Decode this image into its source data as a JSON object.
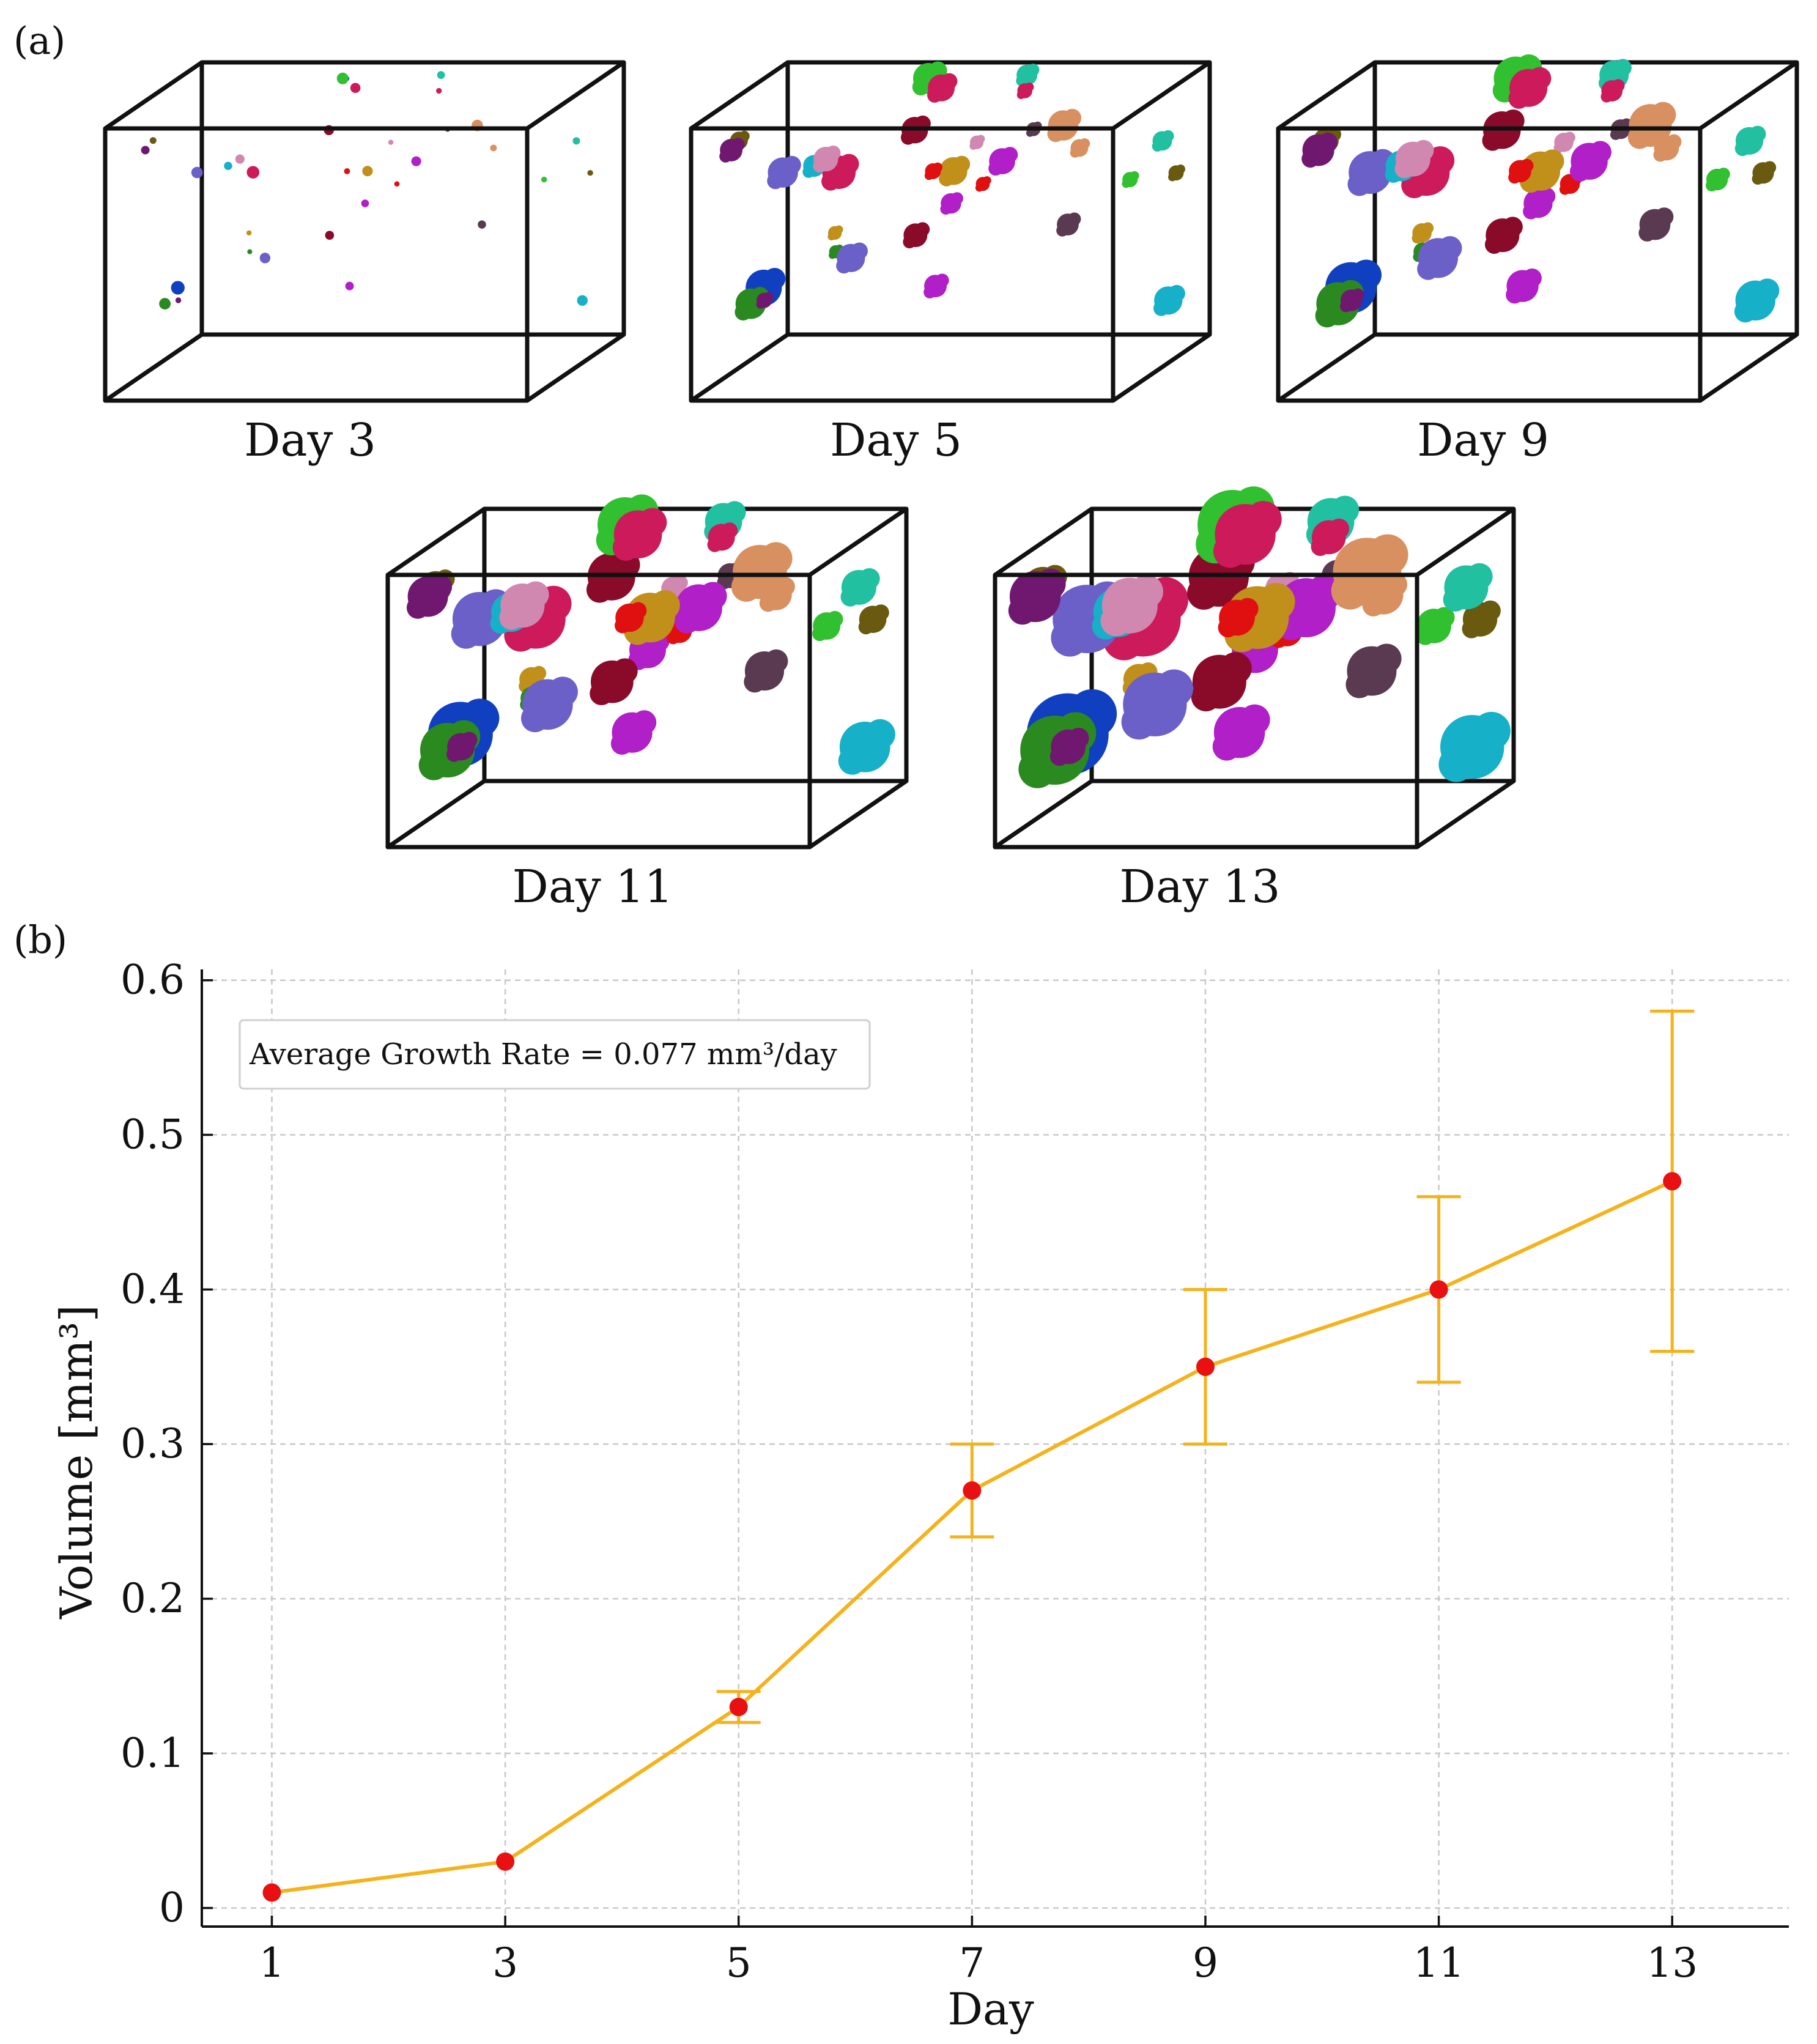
{
  "figure": {
    "panel_a_label": "(a)",
    "panel_b_label": "(b)"
  },
  "panel_a": {
    "days": [
      {
        "label": "Day 3",
        "size": 0.0
      },
      {
        "label": "Day 5",
        "size": 0.33
      },
      {
        "label": "Day 9",
        "size": 0.55
      },
      {
        "label": "Day 11",
        "size": 0.75
      },
      {
        "label": "Day 13",
        "size": 1.0
      }
    ],
    "organoid_colors": [
      "#b01fc8",
      "#cc1a5a",
      "#1040c0",
      "#8a0a2a",
      "#20c0a0",
      "#c0901a",
      "#e01010",
      "#2a8a20",
      "#6a60c8",
      "#16b0c8",
      "#5a3a50",
      "#6a5a10",
      "#d088b0",
      "#d89060",
      "#701870",
      "#30c030"
    ]
  },
  "chart_data": {
    "type": "line",
    "title": "",
    "xlabel": "Day",
    "ylabel": "Volume [mm³]",
    "x": [
      1,
      3,
      5,
      7,
      9,
      11,
      13
    ],
    "values": [
      0.01,
      0.03,
      0.13,
      0.27,
      0.35,
      0.4,
      0.47
    ],
    "error_low": [
      null,
      null,
      0.12,
      0.24,
      0.3,
      0.34,
      0.36
    ],
    "error_high": [
      null,
      null,
      0.14,
      0.3,
      0.4,
      0.46,
      0.58
    ],
    "xlim": [
      0.4,
      14.0
    ],
    "ylim": [
      -0.012,
      0.607
    ],
    "xticks": [
      1,
      3,
      5,
      7,
      9,
      11,
      13
    ],
    "yticks": [
      0,
      0.1,
      0.2,
      0.3,
      0.4,
      0.5,
      0.6
    ],
    "ytick_labels": [
      "0",
      "0.1",
      "0.2",
      "0.3",
      "0.4",
      "0.5",
      "0.6"
    ],
    "grid": true,
    "legend_text": "Average Growth Rate = 0.077 mm³/day",
    "line_color": "#f5b21a",
    "marker_color": "#e81010",
    "error_color": "#f5b21a"
  }
}
